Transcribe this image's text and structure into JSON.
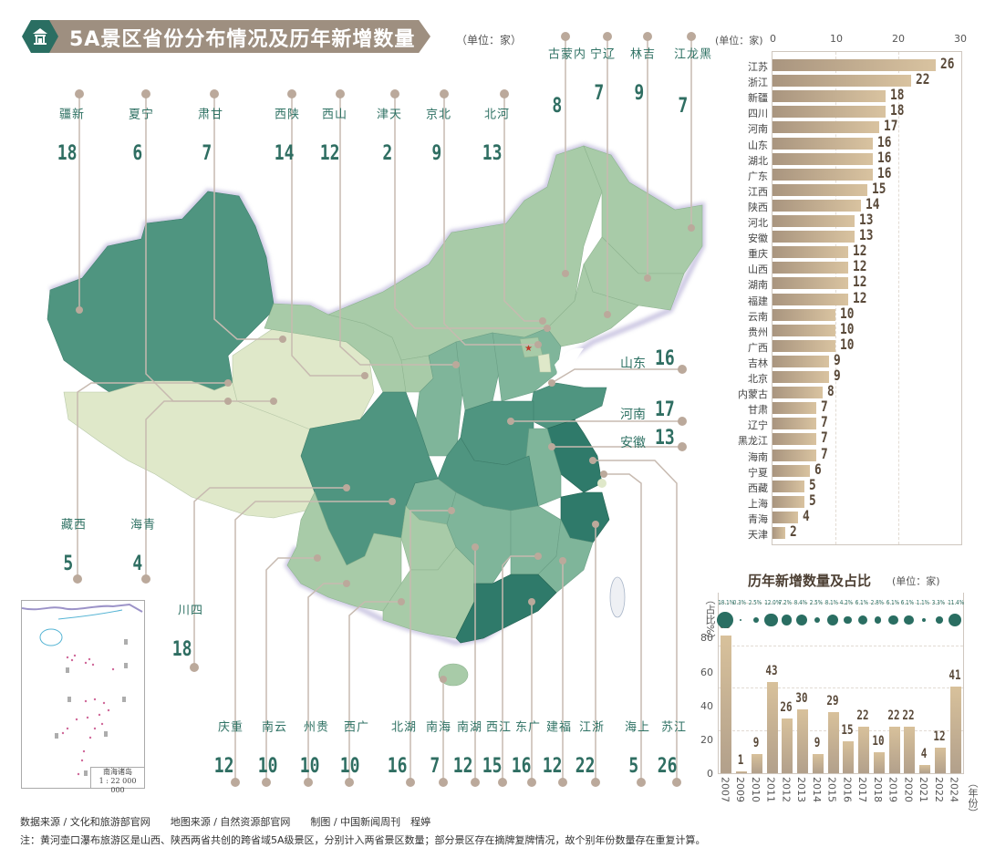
{
  "header": {
    "title": "5A景区省份分布情况及历年新增数量",
    "unit": "（单位：家）",
    "icon": "pavilion-icon"
  },
  "map": {
    "top_callouts": [
      {
        "province": "新疆",
        "value": "18"
      },
      {
        "province": "宁夏",
        "value": "6"
      },
      {
        "province": "甘肃",
        "value": "7"
      },
      {
        "province": "陕西",
        "value": "14"
      },
      {
        "province": "山西",
        "value": "12"
      },
      {
        "province": "天津",
        "value": "2"
      },
      {
        "province": "北京",
        "value": "9"
      },
      {
        "province": "河北",
        "value": "13"
      },
      {
        "province": "内蒙古",
        "value": "8"
      },
      {
        "province": "辽宁",
        "value": "7"
      },
      {
        "province": "吉林",
        "value": "9"
      },
      {
        "province": "黑龙江",
        "value": "7"
      }
    ],
    "side_callouts": [
      {
        "province": "山东",
        "value": "16"
      },
      {
        "province": "河南",
        "value": "17"
      },
      {
        "province": "安徽",
        "value": "13"
      }
    ],
    "left_callouts": [
      {
        "province": "西藏",
        "value": "5"
      },
      {
        "province": "青海",
        "value": "4"
      },
      {
        "province": "四川",
        "value": "18"
      }
    ],
    "bottom_callouts": [
      {
        "province": "重庆",
        "value": "12"
      },
      {
        "province": "云南",
        "value": "10"
      },
      {
        "province": "贵州",
        "value": "10"
      },
      {
        "province": "广西",
        "value": "10"
      },
      {
        "province": "湖北",
        "value": "16"
      },
      {
        "province": "海南",
        "value": "7"
      },
      {
        "province": "湖南",
        "value": "12"
      },
      {
        "province": "江西",
        "value": "15"
      },
      {
        "province": "广东",
        "value": "16"
      },
      {
        "province": "福建",
        "value": "12"
      },
      {
        "province": "浙江",
        "value": "22"
      },
      {
        "province": "上海",
        "value": "5"
      },
      {
        "province": "江苏",
        "value": "26"
      }
    ],
    "inset": {
      "caption_line1": "南海诸岛",
      "caption_line2": "1 : 22 000 000"
    },
    "colors": {
      "darkest": "#2f7a6a",
      "dark": "#4f9580",
      "mid": "#7fb59a",
      "light": "#a8cba8",
      "lightest": "#dfe8c9"
    }
  },
  "chart_data": [
    {
      "type": "bar",
      "orientation": "horizontal",
      "title": "",
      "unit": "(单位：家)",
      "xlim": [
        0,
        30
      ],
      "xticks": [
        0,
        10,
        20,
        30
      ],
      "categories": [
        "江苏",
        "浙江",
        "新疆",
        "四川",
        "河南",
        "山东",
        "湖北",
        "广东",
        "江西",
        "陕西",
        "河北",
        "安徽",
        "重庆",
        "山西",
        "湖南",
        "福建",
        "云南",
        "贵州",
        "广西",
        "吉林",
        "北京",
        "内蒙古",
        "甘肃",
        "辽宁",
        "黑龙江",
        "海南",
        "宁夏",
        "西藏",
        "上海",
        "青海",
        "天津"
      ],
      "values": [
        26,
        22,
        18,
        18,
        17,
        16,
        16,
        16,
        15,
        14,
        13,
        13,
        12,
        12,
        12,
        12,
        10,
        10,
        10,
        9,
        9,
        8,
        7,
        7,
        7,
        7,
        6,
        5,
        5,
        4,
        2
      ]
    },
    {
      "type": "bar",
      "title": "历年新增数量及占比",
      "unit": "(单位：家)",
      "xlabel": "（年份）",
      "ylabel": "（占比%）",
      "ylim": [
        0,
        80
      ],
      "yticks": [
        0,
        20,
        40,
        60,
        80
      ],
      "categories": [
        "2007",
        "2009",
        "2010",
        "2011",
        "2012",
        "2013",
        "2014",
        "2015",
        "2016",
        "2017",
        "2018",
        "2019",
        "2020",
        "2021",
        "2022",
        "2024"
      ],
      "values": [
        65,
        1,
        9,
        43,
        26,
        30,
        9,
        29,
        15,
        22,
        10,
        22,
        22,
        4,
        12,
        41
      ],
      "share_pct": [
        "18.1%",
        "0.3%",
        "2.5%",
        "12.0%",
        "7.2%",
        "8.4%",
        "2.5%",
        "8.1%",
        "4.2%",
        "6.1%",
        "2.8%",
        "6.1%",
        "6.1%",
        "1.1%",
        "3.3%",
        "11.4%"
      ]
    }
  ],
  "footer": {
    "sources": "数据来源 / 文化和旅游部官网　　地图来源 / 自然资源部官网　　制图 / 中国新闻周刊　程婷",
    "note": "注：黄河壶口瀑布旅游区是山西、陕西两省共创的跨省域5A级景区，分别计入两省景区数量；部分景区存在摘牌复牌情况，故个别年份数量存在重复计算。"
  }
}
